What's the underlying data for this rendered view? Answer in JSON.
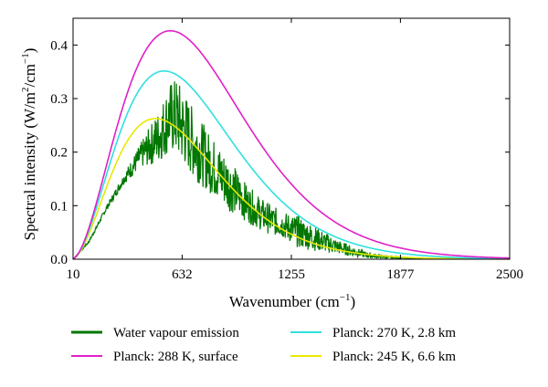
{
  "chart_data": {
    "type": "line",
    "xlabel": "Wavenumber (cm",
    "xlabel_sup": "−1",
    "xlabel_close": ")",
    "ylabel": "Spectral intensity (W/m",
    "ylabel_sup2": "2",
    "ylabel_mid": "/cm",
    "ylabel_sup3": "−1",
    "ylabel_close": ")",
    "xlim": [
      10,
      2500
    ],
    "ylim": [
      0,
      0.45
    ],
    "x_ticks": [
      10,
      632,
      1255,
      1877,
      2500
    ],
    "x_tick_labels": [
      "10",
      "632",
      "1255",
      "1877",
      "2500"
    ],
    "y_ticks": [
      0.0,
      0.1,
      0.2,
      0.3,
      0.4
    ],
    "y_tick_labels": [
      "0.0",
      "0.1",
      "0.2",
      "0.3",
      "0.4"
    ],
    "grid": false,
    "legend_position": "bottom",
    "series": [
      {
        "name": "Water vapour emission",
        "kind": "emission_spectrum",
        "color": "#007700",
        "points": [
          [
            10,
            0.0
          ],
          [
            100,
            0.035
          ],
          [
            200,
            0.1
          ],
          [
            300,
            0.16
          ],
          [
            400,
            0.22
          ],
          [
            500,
            0.28
          ],
          [
            560,
            0.33
          ],
          [
            600,
            0.34
          ],
          [
            650,
            0.31
          ],
          [
            700,
            0.28
          ],
          [
            800,
            0.23
          ],
          [
            900,
            0.19
          ],
          [
            1000,
            0.14
          ],
          [
            1100,
            0.11
          ],
          [
            1200,
            0.09
          ],
          [
            1300,
            0.08
          ],
          [
            1400,
            0.06
          ],
          [
            1500,
            0.04
          ],
          [
            1600,
            0.025
          ],
          [
            1700,
            0.012
          ],
          [
            1800,
            0.006
          ],
          [
            1900,
            0.003
          ],
          [
            2000,
            0.001
          ],
          [
            2500,
            0.0
          ]
        ],
        "floor": [
          [
            10,
            0.0
          ],
          [
            100,
            0.03
          ],
          [
            200,
            0.09
          ],
          [
            300,
            0.14
          ],
          [
            400,
            0.17
          ],
          [
            500,
            0.18
          ],
          [
            560,
            0.2
          ],
          [
            600,
            0.19
          ],
          [
            700,
            0.15
          ],
          [
            800,
            0.12
          ],
          [
            900,
            0.09
          ],
          [
            1000,
            0.07
          ],
          [
            1100,
            0.05
          ],
          [
            1200,
            0.04
          ],
          [
            1300,
            0.02
          ],
          [
            1400,
            0.015
          ],
          [
            1500,
            0.01
          ],
          [
            1600,
            0.005
          ],
          [
            1700,
            0.002
          ],
          [
            2500,
            0.0
          ]
        ]
      },
      {
        "name": "Planck: 288 K, surface",
        "temperature": 288,
        "color": "#e020c8"
      },
      {
        "name": "Planck: 270 K, 2.8 km",
        "temperature": 270,
        "color": "#30e0e0"
      },
      {
        "name": "Planck: 245 K, 6.6 km",
        "temperature": 245,
        "color": "#e8e800"
      }
    ]
  }
}
